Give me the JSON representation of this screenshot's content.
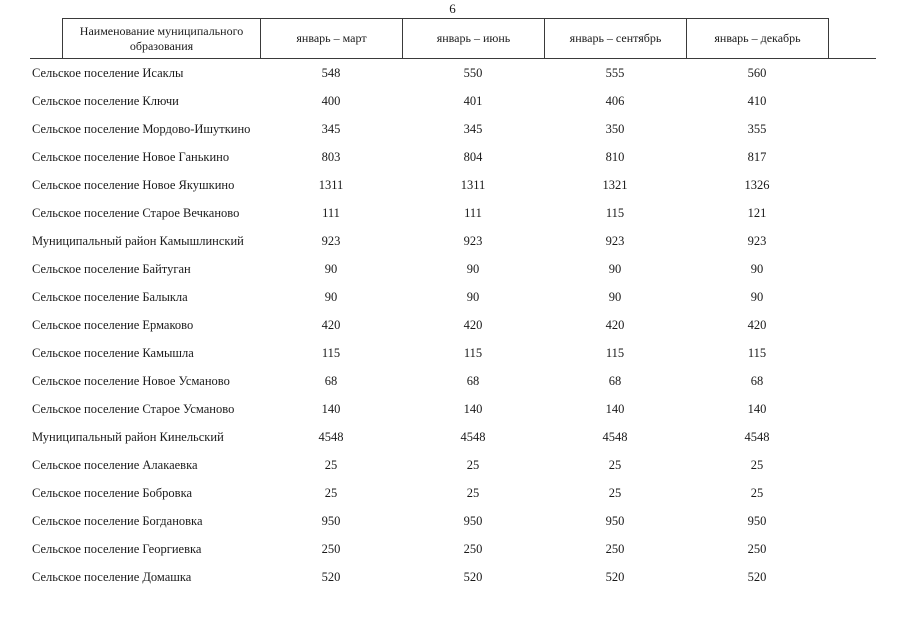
{
  "page_number": "6",
  "table": {
    "headers": [
      "Наименование муниципального образования",
      "январь – март",
      "январь – июнь",
      "январь – сентябрь",
      "январь – декабрь"
    ],
    "rows": [
      {
        "name": "Сельское поселение Исаклы",
        "values": [
          "548",
          "550",
          "555",
          "560"
        ]
      },
      {
        "name": "Сельское поселение Ключи",
        "values": [
          "400",
          "401",
          "406",
          "410"
        ]
      },
      {
        "name": "Сельское поселение Мордово-Ишуткино",
        "values": [
          "345",
          "345",
          "350",
          "355"
        ]
      },
      {
        "name": "Сельское поселение Новое Ганькино",
        "values": [
          "803",
          "804",
          "810",
          "817"
        ]
      },
      {
        "name": "Сельское поселение Новое Якушкино",
        "values": [
          "1311",
          "1311",
          "1321",
          "1326"
        ]
      },
      {
        "name": "Сельское поселение Старое Вечканово",
        "values": [
          "111",
          "111",
          "115",
          "121"
        ]
      },
      {
        "name": "Муниципальный район Камышлинский",
        "values": [
          "923",
          "923",
          "923",
          "923"
        ]
      },
      {
        "name": "Сельское поселение Байтуган",
        "values": [
          "90",
          "90",
          "90",
          "90"
        ]
      },
      {
        "name": "Сельское поселение Балыкла",
        "values": [
          "90",
          "90",
          "90",
          "90"
        ]
      },
      {
        "name": "Сельское поселение Ермаково",
        "values": [
          "420",
          "420",
          "420",
          "420"
        ]
      },
      {
        "name": "Сельское поселение Камышла",
        "values": [
          "115",
          "115",
          "115",
          "115"
        ]
      },
      {
        "name": "Сельское поселение Новое Усманово",
        "values": [
          "68",
          "68",
          "68",
          "68"
        ]
      },
      {
        "name": "Сельское поселение Старое Усманово",
        "values": [
          "140",
          "140",
          "140",
          "140"
        ]
      },
      {
        "name": "Муниципальный район Кинельский",
        "values": [
          "4548",
          "4548",
          "4548",
          "4548"
        ]
      },
      {
        "name": "Сельское поселение Алакаевка",
        "values": [
          "25",
          "25",
          "25",
          "25"
        ]
      },
      {
        "name": "Сельское поселение Бобровка",
        "values": [
          "25",
          "25",
          "25",
          "25"
        ]
      },
      {
        "name": "Сельское поселение Богдановка",
        "values": [
          "950",
          "950",
          "950",
          "950"
        ]
      },
      {
        "name": "Сельское поселение Георгиевка",
        "values": [
          "250",
          "250",
          "250",
          "250"
        ]
      },
      {
        "name": "Сельское поселение Домашка",
        "values": [
          "520",
          "520",
          "520",
          "520"
        ]
      }
    ]
  }
}
